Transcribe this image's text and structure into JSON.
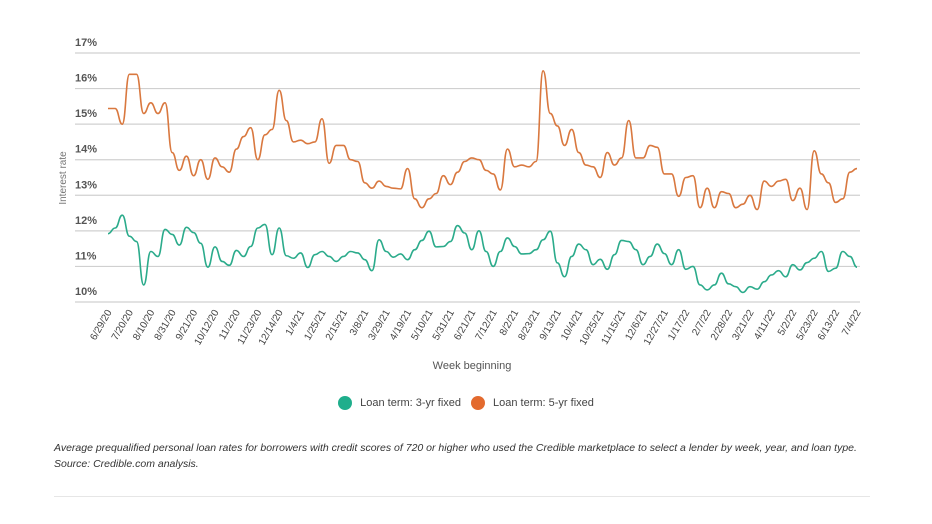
{
  "chart_data": {
    "type": "line",
    "xlabel": "Week beginning",
    "ylabel": "Interest rate",
    "ylim": [
      10,
      17
    ],
    "y_ticks": [
      "10%",
      "11%",
      "12%",
      "13%",
      "14%",
      "15%",
      "16%",
      "17%"
    ],
    "grid": true,
    "legend_placement": "bottom",
    "x_tick_labels": [
      "6/29/20",
      "7/20/20",
      "8/10/20",
      "8/31/20",
      "9/21/20",
      "10/12/20",
      "11/2/20",
      "11/23/20",
      "12/14/20",
      "1/4/21",
      "1/25/21",
      "2/15/21",
      "3/8/21",
      "3/29/21",
      "4/19/21",
      "5/10/21",
      "5/31/21",
      "6/21/21",
      "7/12/21",
      "8/2/21",
      "8/23/21",
      "9/13/21",
      "10/4/21",
      "10/25/21",
      "11/15/21",
      "12/6/21",
      "12/27/21",
      "1/17/22",
      "2/7/22",
      "2/28/22",
      "3/21/22",
      "4/11/22",
      "5/2/22",
      "5/23/22",
      "6/13/22",
      "7/4/22"
    ],
    "x_tick_every_weeks": 3,
    "series": [
      {
        "name": "Loan term: 3-yr fixed",
        "color": "#2bab8b",
        "values": [
          11.92,
          12.08,
          12.44,
          11.85,
          11.7,
          10.48,
          11.42,
          11.28,
          12.04,
          11.9,
          11.6,
          12.1,
          11.95,
          11.65,
          10.98,
          11.55,
          11.14,
          11.03,
          11.45,
          11.28,
          11.56,
          12.08,
          12.18,
          11.33,
          12.08,
          11.3,
          11.23,
          11.38,
          10.97,
          11.33,
          11.42,
          11.28,
          11.14,
          11.28,
          11.42,
          11.38,
          11.19,
          10.88,
          11.75,
          11.42,
          11.26,
          11.35,
          11.19,
          11.47,
          11.73,
          11.99,
          11.55,
          11.56,
          11.7,
          12.15,
          11.94,
          11.47,
          12.0,
          11.42,
          11.0,
          11.42,
          11.8,
          11.56,
          11.35,
          11.36,
          11.47,
          11.75,
          11.99,
          11.1,
          10.71,
          11.28,
          11.63,
          11.47,
          11.05,
          11.2,
          10.92,
          11.33,
          11.73,
          11.7,
          11.47,
          11.05,
          11.28,
          11.63,
          11.36,
          11.05,
          11.47,
          10.92,
          11.0,
          10.48,
          10.34,
          10.48,
          10.81,
          10.51,
          10.43,
          10.27,
          10.43,
          10.36,
          10.57,
          10.76,
          10.88,
          10.71,
          11.05,
          10.9,
          11.11,
          11.23,
          11.42,
          10.86,
          10.95,
          11.42,
          11.28,
          10.98
        ]
      },
      {
        "name": "Loan term: 5-yr fixed",
        "color": "#d9783f",
        "values": [
          15.44,
          15.44,
          15.0,
          16.4,
          16.4,
          15.3,
          15.6,
          15.3,
          15.6,
          14.2,
          13.7,
          14.1,
          13.55,
          14.0,
          13.45,
          14.05,
          13.8,
          13.65,
          14.3,
          14.65,
          14.9,
          14.0,
          14.7,
          14.85,
          15.95,
          15.1,
          14.5,
          14.55,
          14.45,
          14.5,
          15.15,
          13.9,
          14.4,
          14.4,
          14.0,
          13.95,
          13.35,
          13.2,
          13.4,
          13.25,
          13.2,
          13.18,
          13.75,
          12.9,
          12.65,
          12.9,
          13.05,
          13.55,
          13.3,
          13.65,
          13.95,
          14.05,
          14.0,
          13.7,
          13.6,
          13.15,
          14.3,
          13.8,
          13.85,
          13.8,
          13.95,
          16.5,
          15.3,
          14.95,
          14.4,
          14.85,
          14.2,
          13.85,
          13.8,
          13.5,
          14.2,
          13.85,
          14.05,
          15.1,
          14.05,
          14.05,
          14.4,
          14.35,
          13.6,
          13.6,
          12.97,
          13.5,
          13.55,
          12.65,
          13.2,
          12.65,
          13.1,
          13.05,
          12.65,
          12.75,
          13.0,
          12.6,
          13.4,
          13.25,
          13.4,
          13.45,
          12.85,
          13.2,
          12.6,
          14.25,
          13.6,
          13.35,
          12.8,
          12.9,
          13.65,
          13.75
        ]
      }
    ]
  },
  "legend": {
    "items": [
      {
        "label": "Loan term: 3-yr fixed",
        "color": "#1fae8c"
      },
      {
        "label": "Loan term: 5-yr fixed",
        "color": "#e36a2e"
      }
    ]
  },
  "caption": "Average prequalified personal loan rates for borrowers with credit scores of 720 or higher who used the Credible marketplace to select a lender by week, year, and loan type. Source: Credible.com analysis."
}
